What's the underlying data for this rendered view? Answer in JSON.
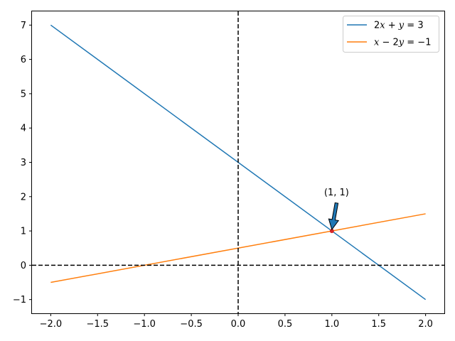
{
  "chart_data": {
    "type": "line",
    "title": "",
    "xlabel": "",
    "ylabel": "",
    "xlim": [
      -2.2,
      2.2
    ],
    "ylim": [
      -1.4,
      7.4
    ],
    "xticks": [
      -2.0,
      -1.5,
      -1.0,
      -0.5,
      0.0,
      0.5,
      1.0,
      1.5,
      2.0
    ],
    "xtick_labels": [
      "−2.0",
      "−1.5",
      "−1.0",
      "−0.5",
      "0.0",
      "0.5",
      "1.0",
      "1.5",
      "2.0"
    ],
    "yticks": [
      -1,
      0,
      1,
      2,
      3,
      4,
      5,
      6,
      7
    ],
    "ytick_labels": [
      "−1",
      "0",
      "1",
      "2",
      "3",
      "4",
      "5",
      "6",
      "7"
    ],
    "grid": false,
    "legend_position": "top-right",
    "series": [
      {
        "name": "2x + y = 3",
        "color": "#1f77b4",
        "x": [
          -2.0,
          2.0
        ],
        "y": [
          7.0,
          -1.0
        ],
        "legend": [
          [
            "2",
            "n"
          ],
          [
            "x",
            "i"
          ],
          [
            " + ",
            "n"
          ],
          [
            "y",
            "i"
          ],
          [
            " = 3",
            "n"
          ]
        ]
      },
      {
        "name": "x − 2y = −1",
        "color": "#ff7f0e",
        "x": [
          -2.0,
          2.0
        ],
        "y": [
          -0.5,
          1.5
        ],
        "legend": [
          [
            "x",
            "i"
          ],
          [
            " − 2",
            "n"
          ],
          [
            "y",
            "i"
          ],
          [
            " = −1",
            "n"
          ]
        ]
      }
    ],
    "reference_lines": [
      {
        "orientation": "vertical",
        "value": 0,
        "style": "dashed",
        "color": "#000000"
      },
      {
        "orientation": "horizontal",
        "value": 0,
        "style": "dashed",
        "color": "#000000"
      }
    ],
    "intersection_point": {
      "x": 1,
      "y": 1,
      "color": "#d62728"
    },
    "annotation": {
      "text": "(1, 1)",
      "x": 1,
      "y": 1,
      "text_x": 1.05,
      "text_y": 2.0,
      "arrow_color": "#1f77b4"
    }
  }
}
